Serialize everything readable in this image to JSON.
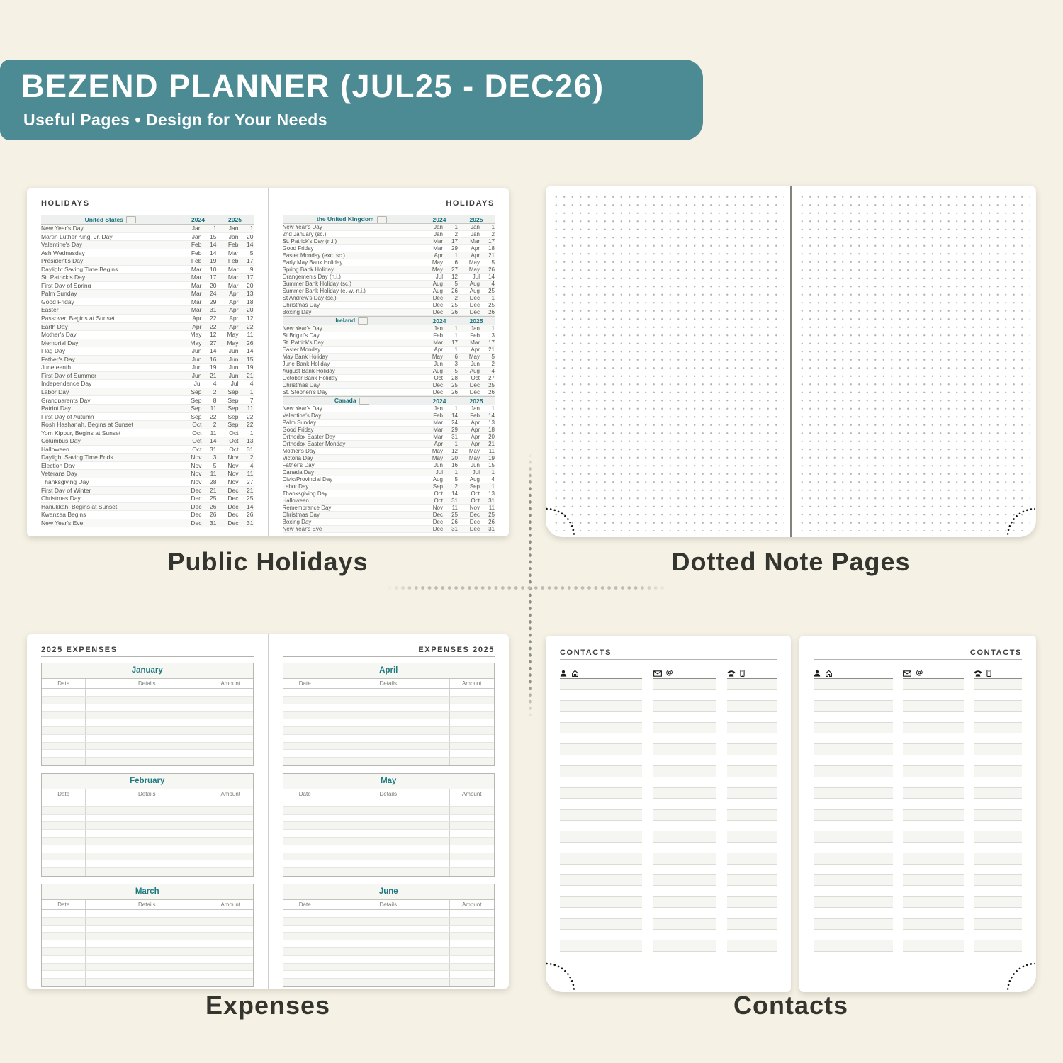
{
  "banner": {
    "title": "BEZEND PLANNER (JUL25 - DEC26)",
    "subtitle": "Useful Pages  •  Design for Your Needs",
    "bg_color": "#4d8b94",
    "text_color": "#ffffff"
  },
  "captions": {
    "holidays": "Public Holidays",
    "notes": "Dotted Note Pages",
    "expenses": "Expenses",
    "contacts": "Contacts"
  },
  "colors": {
    "background": "#f5f1e5",
    "banner_teal": "#4d8b94",
    "heading_teal": "#19727b",
    "page_white": "#ffffff",
    "caption_text": "#35352f"
  },
  "holidays_spread": {
    "left_page": {
      "page_title": "HOLIDAYS",
      "sections": [
        {
          "country": "United States",
          "flag_icon": "us-flag-icon",
          "years": [
            "2024",
            "2025"
          ],
          "rows": [
            [
              "New Year's Day",
              "Jan",
              "1",
              "Jan",
              "1"
            ],
            [
              "Martin Luther King, Jr. Day",
              "Jan",
              "15",
              "Jan",
              "20"
            ],
            [
              "Valentine's Day",
              "Feb",
              "14",
              "Feb",
              "14"
            ],
            [
              "Ash Wednesday",
              "Feb",
              "14",
              "Mar",
              "5"
            ],
            [
              "President's Day",
              "Feb",
              "19",
              "Feb",
              "17"
            ],
            [
              "Daylight Saving Time Begins",
              "Mar",
              "10",
              "Mar",
              "9"
            ],
            [
              "St. Patrick's Day",
              "Mar",
              "17",
              "Mar",
              "17"
            ],
            [
              "First Day of Spring",
              "Mar",
              "20",
              "Mar",
              "20"
            ],
            [
              "Palm Sunday",
              "Mar",
              "24",
              "Apr",
              "13"
            ],
            [
              "Good Friday",
              "Mar",
              "29",
              "Apr",
              "18"
            ],
            [
              "Easter",
              "Mar",
              "31",
              "Apr",
              "20"
            ],
            [
              "Passover, Begins at Sunset",
              "Apr",
              "22",
              "Apr",
              "12"
            ],
            [
              "Earth Day",
              "Apr",
              "22",
              "Apr",
              "22"
            ],
            [
              "Mother's Day",
              "May",
              "12",
              "May",
              "11"
            ],
            [
              "Memorial Day",
              "May",
              "27",
              "May",
              "26"
            ],
            [
              "Flag Day",
              "Jun",
              "14",
              "Jun",
              "14"
            ],
            [
              "Father's Day",
              "Jun",
              "16",
              "Jun",
              "15"
            ],
            [
              "Juneteenth",
              "Jun",
              "19",
              "Jun",
              "19"
            ],
            [
              "First Day of Summer",
              "Jun",
              "21",
              "Jun",
              "21"
            ],
            [
              "Independence Day",
              "Jul",
              "4",
              "Jul",
              "4"
            ],
            [
              "Labor Day",
              "Sep",
              "2",
              "Sep",
              "1"
            ],
            [
              "Grandparents Day",
              "Sep",
              "8",
              "Sep",
              "7"
            ],
            [
              "Patriot Day",
              "Sep",
              "11",
              "Sep",
              "11"
            ],
            [
              "First Day of Autumn",
              "Sep",
              "22",
              "Sep",
              "22"
            ],
            [
              "Rosh Hashanah, Begins at Sunset",
              "Oct",
              "2",
              "Sep",
              "22"
            ],
            [
              "Yom Kippur, Begins at Sunset",
              "Oct",
              "11",
              "Oct",
              "1"
            ],
            [
              "Columbus Day",
              "Oct",
              "14",
              "Oct",
              "13"
            ],
            [
              "Halloween",
              "Oct",
              "31",
              "Oct",
              "31"
            ],
            [
              "Daylight Saving Time Ends",
              "Nov",
              "3",
              "Nov",
              "2"
            ],
            [
              "Election Day",
              "Nov",
              "5",
              "Nov",
              "4"
            ],
            [
              "Veterans Day",
              "Nov",
              "11",
              "Nov",
              "11"
            ],
            [
              "Thanksgiving Day",
              "Nov",
              "28",
              "Nov",
              "27"
            ],
            [
              "First Day of Winter",
              "Dec",
              "21",
              "Dec",
              "21"
            ],
            [
              "Christmas Day",
              "Dec",
              "25",
              "Dec",
              "25"
            ],
            [
              "Hanukkah, Begins at Sunset",
              "Dec",
              "26",
              "Dec",
              "14"
            ],
            [
              "Kwanzaa Begins",
              "Dec",
              "26",
              "Dec",
              "26"
            ],
            [
              "New Year's Eve",
              "Dec",
              "31",
              "Dec",
              "31"
            ]
          ]
        }
      ]
    },
    "right_page": {
      "page_title": "HOLIDAYS",
      "sections": [
        {
          "country": "the United Kingdom",
          "flag_icon": "uk-flag-icon",
          "years": [
            "2024",
            "2025"
          ],
          "rows": [
            [
              "New Year's Day",
              "Jan",
              "1",
              "Jan",
              "1"
            ],
            [
              "2nd January (sc.)",
              "Jan",
              "2",
              "Jan",
              "2"
            ],
            [
              "St. Patrick's Day (n.i.)",
              "Mar",
              "17",
              "Mar",
              "17"
            ],
            [
              "Good Friday",
              "Mar",
              "29",
              "Apr",
              "18"
            ],
            [
              "Easter Monday (exc. sc.)",
              "Apr",
              "1",
              "Apr",
              "21"
            ],
            [
              "Early May Bank Holiday",
              "May",
              "6",
              "May",
              "5"
            ],
            [
              "Spring Bank Holiday",
              "May",
              "27",
              "May",
              "26"
            ],
            [
              "Orangemen's Day (n.i.)",
              "Jul",
              "12",
              "Jul",
              "14"
            ],
            [
              "Summer Bank Holiday (sc.)",
              "Aug",
              "5",
              "Aug",
              "4"
            ],
            [
              "Summer Bank Holiday (e.-w.-n.i.)",
              "Aug",
              "26",
              "Aug",
              "25"
            ],
            [
              "St Andrew's Day (sc.)",
              "Dec",
              "2",
              "Dec",
              "1"
            ],
            [
              "Christmas Day",
              "Dec",
              "25",
              "Dec",
              "25"
            ],
            [
              "Boxing Day",
              "Dec",
              "26",
              "Dec",
              "26"
            ]
          ]
        },
        {
          "country": "Ireland",
          "flag_icon": "ireland-flag-icon",
          "years": [
            "2024",
            "2025"
          ],
          "rows": [
            [
              "New Year's Day",
              "Jan",
              "1",
              "Jan",
              "1"
            ],
            [
              "St Brigid's Day",
              "Feb",
              "1",
              "Feb",
              "3"
            ],
            [
              "St. Patrick's Day",
              "Mar",
              "17",
              "Mar",
              "17"
            ],
            [
              "Easter Monday",
              "Apr",
              "1",
              "Apr",
              "21"
            ],
            [
              "May Bank Holiday",
              "May",
              "6",
              "May",
              "5"
            ],
            [
              "June Bank Holiday",
              "Jun",
              "3",
              "Jun",
              "2"
            ],
            [
              "August Bank Holiday",
              "Aug",
              "5",
              "Aug",
              "4"
            ],
            [
              "October Bank Holiday",
              "Oct",
              "28",
              "Oct",
              "27"
            ],
            [
              "Christmas Day",
              "Dec",
              "25",
              "Dec",
              "25"
            ],
            [
              "St. Stephen's Day",
              "Dec",
              "26",
              "Dec",
              "26"
            ]
          ]
        },
        {
          "country": "Canada",
          "flag_icon": "canada-flag-icon",
          "years": [
            "2024",
            "2025"
          ],
          "rows": [
            [
              "New Year's Day",
              "Jan",
              "1",
              "Jan",
              "1"
            ],
            [
              "Valentine's Day",
              "Feb",
              "14",
              "Feb",
              "14"
            ],
            [
              "Palm Sunday",
              "Mar",
              "24",
              "Apr",
              "13"
            ],
            [
              "Good Friday",
              "Mar",
              "29",
              "Apr",
              "18"
            ],
            [
              "Orthodox Easter Day",
              "Mar",
              "31",
              "Apr",
              "20"
            ],
            [
              "Orthodox Easter Monday",
              "Apr",
              "1",
              "Apr",
              "21"
            ],
            [
              "Mother's Day",
              "May",
              "12",
              "May",
              "11"
            ],
            [
              "Victoria Day",
              "May",
              "20",
              "May",
              "19"
            ],
            [
              "Father's Day",
              "Jun",
              "16",
              "Jun",
              "15"
            ],
            [
              "Canada Day",
              "Jul",
              "1",
              "Jul",
              "1"
            ],
            [
              "Civic/Provincial Day",
              "Aug",
              "5",
              "Aug",
              "4"
            ],
            [
              "Labor Day",
              "Sep",
              "2",
              "Sep",
              "1"
            ],
            [
              "Thanksgiving Day",
              "Oct",
              "14",
              "Oct",
              "13"
            ],
            [
              "Halloween",
              "Oct",
              "31",
              "Oct",
              "31"
            ],
            [
              "Remembrance Day",
              "Nov",
              "11",
              "Nov",
              "11"
            ],
            [
              "Christmas Day",
              "Dec",
              "25",
              "Dec",
              "25"
            ],
            [
              "Boxing Day",
              "Dec",
              "26",
              "Dec",
              "26"
            ],
            [
              "New Year's Eve",
              "Dec",
              "31",
              "Dec",
              "31"
            ]
          ]
        }
      ]
    }
  },
  "expenses_spread": {
    "columns": [
      "Date",
      "Details",
      "Amount"
    ],
    "rows_per_month": 10,
    "left_page": {
      "page_title": "2025 EXPENSES",
      "months": [
        "January",
        "February",
        "March"
      ]
    },
    "right_page": {
      "page_title": "EXPENSES 2025",
      "months": [
        "April",
        "May",
        "June"
      ]
    }
  },
  "contacts_spread": {
    "left_page": {
      "page_title": "CONTACTS"
    },
    "right_page": {
      "page_title": "CONTACTS"
    },
    "columns": [
      {
        "icons": [
          "person-icon",
          "home-icon"
        ]
      },
      {
        "icons": [
          "mail-icon",
          "at-icon"
        ]
      },
      {
        "icons": [
          "phone-icon",
          "mobile-icon"
        ]
      }
    ],
    "lines_per_column": 26
  }
}
